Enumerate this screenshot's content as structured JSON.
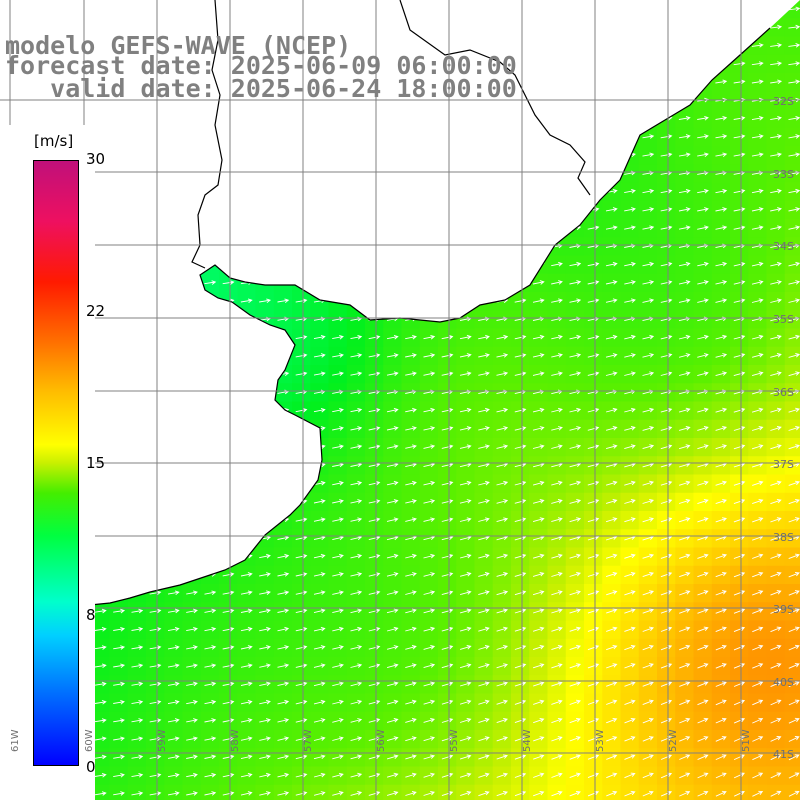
{
  "title": {
    "line1": "modelo GEFS-WAVE (NCEP)",
    "line2": "forecast date: 2025-06-09 06:00:00",
    "line3": "   valid date: 2025-06-24 18:00:00"
  },
  "colorbar": {
    "unit": "[m/s]",
    "ticks": [
      "30",
      "22",
      "15",
      "8",
      "0"
    ],
    "range": [
      0,
      30
    ],
    "colors": [
      "#0000ff",
      "#00d0ff",
      "#00ff40",
      "#ffff00",
      "#ff7000",
      "#ff1a00",
      "#c0107a"
    ]
  },
  "map": {
    "lat_labels": [
      "32S",
      "33S",
      "34S",
      "35S",
      "36S",
      "37S",
      "38S",
      "39S",
      "40S",
      "41S"
    ],
    "lon_labels": [
      "61W",
      "60W",
      "59W",
      "58W",
      "57W",
      "56W",
      "55W",
      "54W",
      "53W",
      "52W",
      "51W"
    ],
    "land_color": "#ffffff",
    "coast_color": "#000000",
    "grid_color": "#808080",
    "arrow_color": "#ffffff",
    "icons": [
      "wind-vector-arrow"
    ]
  }
}
